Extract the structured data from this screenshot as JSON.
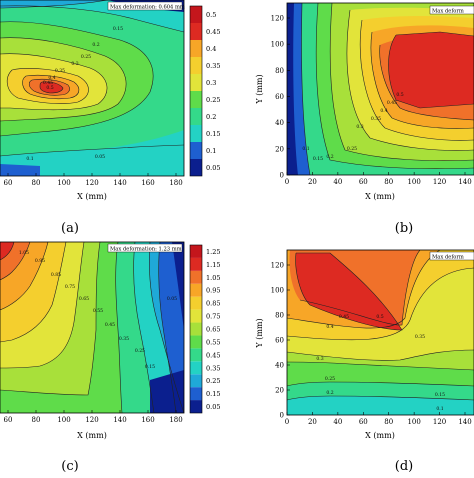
{
  "chart_data": [
    {
      "panel": "a",
      "type": "contour",
      "annotation": "Max deformation: 0.604 mm",
      "xlabel": "X (mm)",
      "ylabel": "",
      "xticks": [
        "60",
        "80",
        "100",
        "120",
        "140",
        "160",
        "180"
      ],
      "yticks": [],
      "colorbar_ticks": [
        "0.05",
        "0.1",
        "0.15",
        "0.2",
        "0.25",
        "0.3",
        "0.35",
        "0.4",
        "0.45",
        "0.5"
      ],
      "contour_labels": [
        "0.15",
        "0.2",
        "0.25",
        "0.3",
        "0.35",
        "0.4",
        "0.45",
        "0.5",
        "0.05",
        "0.1"
      ],
      "max_value": 0.604
    },
    {
      "panel": "b",
      "type": "contour",
      "annotation": "Max deform",
      "xlabel": "X (mm)",
      "ylabel": "Y (mm)",
      "xticks": [
        "0",
        "20",
        "40",
        "60",
        "80",
        "100",
        "120",
        "140"
      ],
      "yticks": [
        "0",
        "20",
        "40",
        "60",
        "80",
        "100",
        "120"
      ],
      "contour_labels": [
        "0.3",
        "0.35",
        "0.4",
        "0.45",
        "0.5",
        "0.25",
        "0.2",
        "0.15",
        "0.1"
      ]
    },
    {
      "panel": "c",
      "type": "contour",
      "annotation": "Max deformation: 1.23 mm",
      "xlabel": "X (mm)",
      "ylabel": "",
      "xticks": [
        "60",
        "80",
        "100",
        "120",
        "140",
        "160",
        "180"
      ],
      "yticks": [],
      "colorbar_ticks": [
        "0.05",
        "0.15",
        "0.25",
        "0.35",
        "0.45",
        "0.55",
        "0.65",
        "0.75",
        "0.85",
        "0.95",
        "1.05",
        "1.15",
        "1.25"
      ],
      "contour_labels": [
        "1.05",
        "0.95",
        "0.85",
        "0.75",
        "0.65",
        "0.55",
        "0.45",
        "0.35",
        "0.25",
        "0.15",
        "0.05"
      ],
      "max_value": 1.23
    },
    {
      "panel": "d",
      "type": "contour",
      "annotation": "Max deform",
      "xlabel": "X (mm)",
      "ylabel": "Y (mm)",
      "xticks": [
        "0",
        "20",
        "40",
        "60",
        "80",
        "100",
        "120",
        "140"
      ],
      "yticks": [
        "0",
        "20",
        "40",
        "60",
        "80",
        "100",
        "120"
      ],
      "contour_labels": [
        "0.5",
        "0.45",
        "0.4",
        "0.35",
        "0.3",
        "0.25",
        "0.2",
        "0.15",
        "0.1"
      ]
    }
  ],
  "captions": [
    "(a)",
    "(b)",
    "(c)",
    "(d)"
  ],
  "colors": {
    "scale": [
      "#0b1f8e",
      "#1e5fd0",
      "#1fa9d8",
      "#23d2c4",
      "#34d98a",
      "#5fdc4a",
      "#a8e03a",
      "#e2e43a",
      "#f4cf2e",
      "#f7a627",
      "#f0712a",
      "#dd2a22",
      "#c4161c"
    ]
  }
}
